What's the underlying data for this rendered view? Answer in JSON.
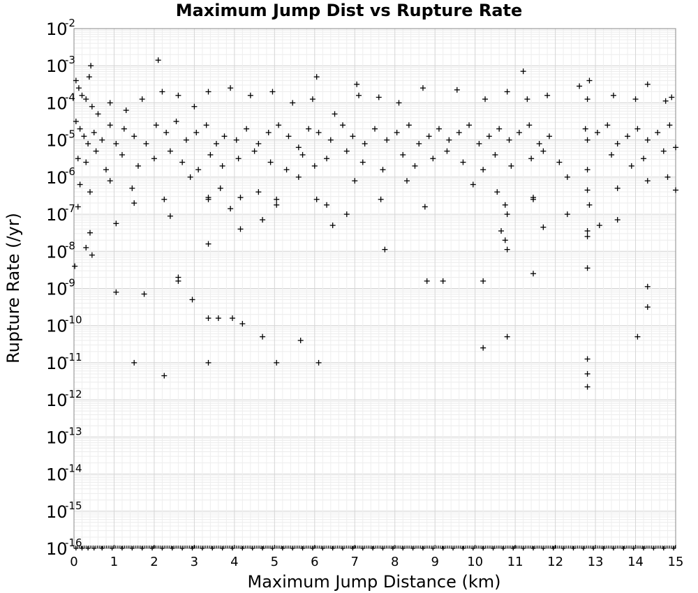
{
  "chart_data": {
    "type": "scatter",
    "title": "Maximum Jump Dist vs Rupture Rate",
    "xlabel": "Maximum Jump Distance (km)",
    "ylabel": "Rupture Rate (/yr)",
    "xlim": [
      0,
      15
    ],
    "ylim_log10": [
      -16,
      -2
    ],
    "yscale": "log",
    "grid": true,
    "marker": "plus",
    "marker_color": "#000000",
    "x_ticks": [
      "0",
      "1",
      "2",
      "3",
      "4",
      "5",
      "6",
      "7",
      "8",
      "9",
      "10",
      "11",
      "12",
      "13",
      "14",
      "15"
    ],
    "y_ticks": [
      {
        "base": "10",
        "exp": "-2"
      },
      {
        "base": "10",
        "exp": "-3"
      },
      {
        "base": "10",
        "exp": "-4"
      },
      {
        "base": "10",
        "exp": "-5"
      },
      {
        "base": "10",
        "exp": "-6"
      },
      {
        "base": "10",
        "exp": "-7"
      },
      {
        "base": "10",
        "exp": "-8"
      },
      {
        "base": "10",
        "exp": "-9"
      },
      {
        "base": "10",
        "exp": "-10"
      },
      {
        "base": "10",
        "exp": "-11"
      },
      {
        "base": "10",
        "exp": "-12"
      },
      {
        "base": "10",
        "exp": "-13"
      },
      {
        "base": "10",
        "exp": "-14"
      },
      {
        "base": "10",
        "exp": "-15"
      },
      {
        "base": "10",
        "exp": "-16"
      }
    ],
    "series": [
      {
        "points_log10": [
          [
            0.42,
            -3.0
          ],
          [
            0.38,
            -3.3
          ],
          [
            2.1,
            -2.85
          ],
          [
            11.2,
            -3.15
          ],
          [
            6.05,
            -3.3
          ],
          [
            12.85,
            -3.4
          ],
          [
            7.05,
            -3.5
          ],
          [
            14.3,
            -3.5
          ],
          [
            0.05,
            -3.4
          ],
          [
            0.12,
            -3.6
          ],
          [
            0.2,
            -3.8
          ],
          [
            0.3,
            -3.9
          ],
          [
            0.45,
            -4.1
          ],
          [
            0.6,
            -4.3
          ],
          [
            0.9,
            -4.0
          ],
          [
            1.3,
            -4.2
          ],
          [
            1.7,
            -3.9
          ],
          [
            2.2,
            -3.7
          ],
          [
            2.6,
            -3.8
          ],
          [
            3.0,
            -4.1
          ],
          [
            3.35,
            -3.7
          ],
          [
            3.9,
            -3.6
          ],
          [
            4.4,
            -3.8
          ],
          [
            4.95,
            -3.7
          ],
          [
            5.45,
            -4.0
          ],
          [
            5.95,
            -3.9
          ],
          [
            6.5,
            -4.3
          ],
          [
            7.1,
            -3.8
          ],
          [
            7.6,
            -3.85
          ],
          [
            8.1,
            -4.0
          ],
          [
            8.7,
            -3.6
          ],
          [
            9.55,
            -3.65
          ],
          [
            10.25,
            -3.9
          ],
          [
            10.8,
            -3.7
          ],
          [
            11.3,
            -3.9
          ],
          [
            11.8,
            -3.8
          ],
          [
            12.6,
            -3.55
          ],
          [
            12.8,
            -3.9
          ],
          [
            13.45,
            -3.8
          ],
          [
            14.0,
            -3.9
          ],
          [
            14.75,
            -3.95
          ],
          [
            14.9,
            -3.85
          ],
          [
            0.05,
            -4.5
          ],
          [
            0.15,
            -4.7
          ],
          [
            0.25,
            -4.9
          ],
          [
            0.35,
            -5.1
          ],
          [
            0.5,
            -4.8
          ],
          [
            0.7,
            -5.0
          ],
          [
            0.9,
            -4.6
          ],
          [
            1.05,
            -5.1
          ],
          [
            1.25,
            -4.7
          ],
          [
            1.5,
            -4.9
          ],
          [
            1.8,
            -5.1
          ],
          [
            2.05,
            -4.6
          ],
          [
            2.3,
            -4.8
          ],
          [
            2.55,
            -4.5
          ],
          [
            2.8,
            -5.0
          ],
          [
            3.05,
            -4.8
          ],
          [
            3.3,
            -4.6
          ],
          [
            3.55,
            -5.1
          ],
          [
            3.75,
            -4.9
          ],
          [
            4.05,
            -5.0
          ],
          [
            4.3,
            -4.7
          ],
          [
            4.6,
            -5.1
          ],
          [
            4.85,
            -4.8
          ],
          [
            5.1,
            -4.6
          ],
          [
            5.35,
            -4.9
          ],
          [
            5.6,
            -5.2
          ],
          [
            5.85,
            -4.7
          ],
          [
            6.1,
            -4.8
          ],
          [
            6.4,
            -5.0
          ],
          [
            6.7,
            -4.6
          ],
          [
            6.95,
            -4.9
          ],
          [
            7.25,
            -5.1
          ],
          [
            7.5,
            -4.7
          ],
          [
            7.8,
            -5.0
          ],
          [
            8.05,
            -4.8
          ],
          [
            8.35,
            -4.6
          ],
          [
            8.6,
            -5.1
          ],
          [
            8.85,
            -4.9
          ],
          [
            9.1,
            -4.7
          ],
          [
            9.35,
            -5.0
          ],
          [
            9.6,
            -4.8
          ],
          [
            9.85,
            -4.6
          ],
          [
            10.1,
            -5.1
          ],
          [
            10.35,
            -4.9
          ],
          [
            10.6,
            -4.7
          ],
          [
            10.85,
            -5.0
          ],
          [
            11.1,
            -4.8
          ],
          [
            11.35,
            -4.6
          ],
          [
            11.6,
            -5.1
          ],
          [
            11.85,
            -4.9
          ],
          [
            12.75,
            -4.7
          ],
          [
            12.8,
            -5.0
          ],
          [
            13.05,
            -4.8
          ],
          [
            13.3,
            -4.6
          ],
          [
            13.55,
            -5.1
          ],
          [
            13.8,
            -4.9
          ],
          [
            14.05,
            -4.7
          ],
          [
            14.3,
            -5.0
          ],
          [
            14.55,
            -4.8
          ],
          [
            14.85,
            -4.6
          ],
          [
            0.1,
            -5.5
          ],
          [
            0.3,
            -5.6
          ],
          [
            0.55,
            -5.3
          ],
          [
            0.8,
            -5.8
          ],
          [
            1.2,
            -5.4
          ],
          [
            1.6,
            -5.7
          ],
          [
            2.0,
            -5.5
          ],
          [
            2.4,
            -5.3
          ],
          [
            2.7,
            -5.6
          ],
          [
            3.1,
            -5.8
          ],
          [
            3.4,
            -5.4
          ],
          [
            3.7,
            -5.7
          ],
          [
            4.1,
            -5.5
          ],
          [
            4.5,
            -5.3
          ],
          [
            4.9,
            -5.6
          ],
          [
            5.3,
            -5.8
          ],
          [
            5.7,
            -5.4
          ],
          [
            6.0,
            -5.7
          ],
          [
            6.3,
            -5.5
          ],
          [
            6.8,
            -5.3
          ],
          [
            7.2,
            -5.6
          ],
          [
            7.7,
            -5.8
          ],
          [
            8.2,
            -5.4
          ],
          [
            8.5,
            -5.7
          ],
          [
            8.95,
            -5.5
          ],
          [
            9.3,
            -5.3
          ],
          [
            9.7,
            -5.6
          ],
          [
            10.2,
            -5.8
          ],
          [
            10.5,
            -5.4
          ],
          [
            10.9,
            -5.7
          ],
          [
            11.4,
            -5.5
          ],
          [
            11.7,
            -5.3
          ],
          [
            12.1,
            -5.6
          ],
          [
            12.8,
            -5.8
          ],
          [
            13.4,
            -5.4
          ],
          [
            13.9,
            -5.7
          ],
          [
            14.2,
            -5.5
          ],
          [
            14.7,
            -5.3
          ],
          [
            15.0,
            -5.2
          ],
          [
            0.15,
            -6.2
          ],
          [
            0.4,
            -6.4
          ],
          [
            0.9,
            -6.1
          ],
          [
            1.45,
            -6.3
          ],
          [
            2.25,
            -6.6
          ],
          [
            2.9,
            -6.0
          ],
          [
            3.35,
            -6.55
          ],
          [
            3.65,
            -6.3
          ],
          [
            4.15,
            -6.55
          ],
          [
            4.6,
            -6.4
          ],
          [
            5.05,
            -6.6
          ],
          [
            5.6,
            -6.0
          ],
          [
            6.05,
            -6.6
          ],
          [
            6.3,
            -6.75
          ],
          [
            7.0,
            -6.1
          ],
          [
            7.65,
            -6.6
          ],
          [
            8.3,
            -6.1
          ],
          [
            9.95,
            -6.2
          ],
          [
            10.55,
            -6.4
          ],
          [
            10.75,
            -6.75
          ],
          [
            11.45,
            -6.6
          ],
          [
            12.3,
            -6.0
          ],
          [
            12.8,
            -6.35
          ],
          [
            13.55,
            -6.3
          ],
          [
            14.3,
            -6.1
          ],
          [
            14.8,
            -6.0
          ],
          [
            15.0,
            -6.35
          ],
          [
            0.1,
            -6.8
          ],
          [
            0.4,
            -7.5
          ],
          [
            1.05,
            -7.25
          ],
          [
            1.5,
            -6.7
          ],
          [
            2.4,
            -7.05
          ],
          [
            3.35,
            -6.6
          ],
          [
            3.9,
            -6.85
          ],
          [
            4.15,
            -7.4
          ],
          [
            4.7,
            -7.15
          ],
          [
            5.05,
            -6.75
          ],
          [
            6.45,
            -7.3
          ],
          [
            6.8,
            -7.0
          ],
          [
            8.75,
            -6.8
          ],
          [
            10.65,
            -7.45
          ],
          [
            10.8,
            -7.0
          ],
          [
            11.45,
            -6.55
          ],
          [
            12.3,
            -7.0
          ],
          [
            13.1,
            -7.3
          ],
          [
            13.55,
            -7.15
          ],
          [
            12.85,
            -6.75
          ],
          [
            0.3,
            -7.9
          ],
          [
            0.45,
            -8.1
          ],
          [
            3.35,
            -7.8
          ],
          [
            7.75,
            -7.95
          ],
          [
            10.75,
            -7.7
          ],
          [
            10.8,
            -7.95
          ],
          [
            11.7,
            -7.35
          ],
          [
            12.8,
            -7.6
          ],
          [
            12.8,
            -7.45
          ],
          [
            0.02,
            -8.4
          ],
          [
            2.6,
            -8.7
          ],
          [
            2.6,
            -8.8
          ],
          [
            8.8,
            -8.8
          ],
          [
            9.2,
            -8.8
          ],
          [
            10.2,
            -8.8
          ],
          [
            11.45,
            -8.6
          ],
          [
            12.8,
            -8.45
          ],
          [
            14.3,
            -8.95
          ],
          [
            1.05,
            -9.1
          ],
          [
            1.75,
            -9.15
          ],
          [
            2.95,
            -9.3
          ],
          [
            14.3,
            -9.5
          ],
          [
            3.35,
            -9.8
          ],
          [
            3.6,
            -9.8
          ],
          [
            3.95,
            -9.8
          ],
          [
            4.2,
            -9.95
          ],
          [
            4.7,
            -10.3
          ],
          [
            5.65,
            -10.4
          ],
          [
            10.8,
            -10.3
          ],
          [
            14.05,
            -10.3
          ],
          [
            10.2,
            -10.6
          ],
          [
            1.5,
            -11.0
          ],
          [
            3.35,
            -11.0
          ],
          [
            5.05,
            -11.0
          ],
          [
            6.1,
            -11.0
          ],
          [
            12.8,
            -10.9
          ],
          [
            2.25,
            -11.35
          ],
          [
            12.8,
            -11.3
          ],
          [
            12.8,
            -11.65
          ]
        ]
      },
      {
        "name_hidden": "",
        "x_floor": [
          0.05,
          0.2,
          0.35,
          0.5,
          0.7,
          0.95,
          1.2,
          1.45,
          1.7,
          1.95,
          2.2,
          2.45,
          2.7,
          2.95,
          3.2,
          3.45,
          3.7,
          3.95,
          4.2,
          4.45,
          4.7,
          4.95,
          5.2,
          5.45,
          5.7,
          5.95,
          6.2,
          6.45,
          6.7,
          6.95,
          7.2,
          7.45,
          7.7,
          7.95,
          8.2,
          8.45,
          8.7,
          8.95,
          9.2,
          9.45,
          9.7,
          9.95,
          10.2,
          10.45,
          10.7,
          10.95,
          11.2,
          11.45,
          11.7,
          11.95,
          12.2,
          12.45,
          12.7,
          12.95,
          13.2,
          13.45,
          13.7,
          13.95,
          14.2,
          14.45,
          14.7,
          14.95
        ]
      }
    ]
  }
}
